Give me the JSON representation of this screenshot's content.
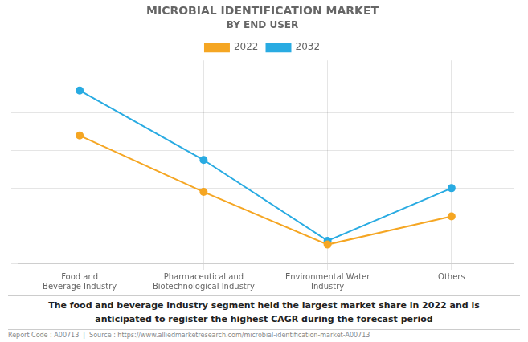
{
  "chart_data": {
    "type": "line",
    "title": "MICROBIAL IDENTIFICATION MARKET",
    "subtitle": "BY END USER",
    "categories": [
      "Food and\nBeverage Industry",
      "Pharmaceutical and\nBiotechnological Industry",
      "Environmental Water\nIndustry",
      "Others"
    ],
    "series": [
      {
        "name": "2022",
        "color": "#F5A623",
        "values": [
          0.68,
          0.38,
          0.1,
          0.25
        ]
      },
      {
        "name": "2032",
        "color": "#29ABE2",
        "values": [
          0.92,
          0.55,
          0.12,
          0.4
        ]
      }
    ],
    "ylim": [
      0,
      1.08
    ],
    "yticks": [
      0,
      0.2,
      0.4,
      0.6,
      0.8,
      1.0
    ],
    "tick_labels": "x",
    "grid": true,
    "legend": "top",
    "marker": "circle",
    "annotation": "The food and beverage industry segment held the largest market share in 2022 and is\nanticipated to register the highest CAGR during the forecast period",
    "footer": "Report Code : A00713  |  Source : https://www.alliedmarketresearch.com/microbial-identification-market-A00713"
  }
}
